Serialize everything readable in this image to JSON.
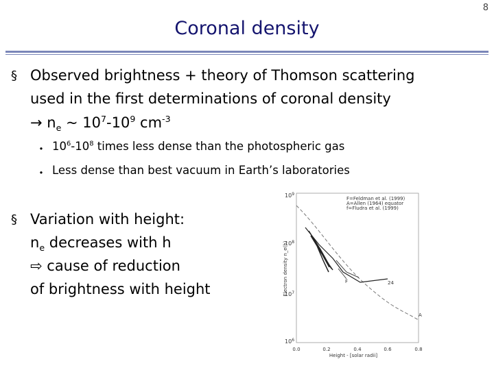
{
  "page_number": "8",
  "header": {
    "title": "Coronal density"
  },
  "bullets": [
    {
      "lines": [
        [
          "Observed brightness + theory of Thomson scattering"
        ],
        [
          "used in the first determinations of coronal density"
        ],
        [
          "→ n",
          "e",
          " ~ 10",
          "7",
          "-10",
          "9",
          " cm",
          "-3"
        ]
      ],
      "sub_bullets": [
        [
          "10",
          "6",
          "-10",
          "8",
          " times less dense than the photospheric gas"
        ],
        [
          "Less dense than best vacuum in Earth’s laboratories"
        ]
      ]
    },
    {
      "lines": [
        [
          "Variation with height:"
        ],
        [
          "n",
          "e",
          " decreases with h"
        ],
        [
          "⇨ cause of reduction"
        ],
        [
          "of brightness with height"
        ]
      ]
    }
  ],
  "figure": {
    "legend": [
      "F=Feldman et al. (1999)",
      "A=Allen (1964) equator",
      "f=Fludra et al. (1999)"
    ],
    "y_axis_label": "Electron density n_e(h)",
    "x_axis_label": "Height - [solar radii]",
    "yticks": [
      [
        "10",
        "9"
      ],
      [
        "10",
        "8"
      ],
      [
        "10",
        "7"
      ],
      [
        "10",
        "6"
      ]
    ],
    "xticks": [
      "0.0",
      "0.2",
      "0.4",
      "0.6",
      "0.8"
    ],
    "curve_labels": [
      "24",
      "A",
      "F"
    ]
  }
}
